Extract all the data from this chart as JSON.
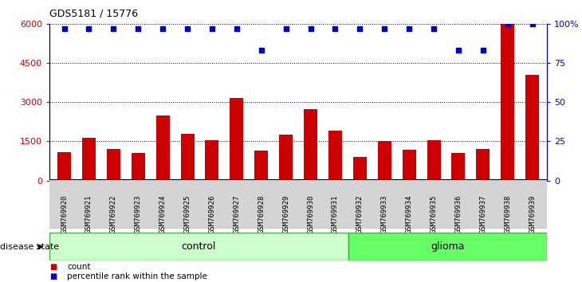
{
  "title": "GDS5181 / 15776",
  "categories": [
    "GSM769920",
    "GSM769921",
    "GSM769922",
    "GSM769923",
    "GSM769924",
    "GSM769925",
    "GSM769926",
    "GSM769927",
    "GSM769928",
    "GSM769929",
    "GSM769930",
    "GSM769931",
    "GSM769932",
    "GSM769933",
    "GSM769934",
    "GSM769935",
    "GSM769936",
    "GSM769937",
    "GSM769938",
    "GSM769939"
  ],
  "counts": [
    1100,
    1650,
    1200,
    1050,
    2500,
    1800,
    1550,
    3150,
    1150,
    1750,
    2750,
    1900,
    900,
    1500,
    1180,
    1550,
    1050,
    1200,
    6000,
    4050
  ],
  "percentile_ranks": [
    97,
    97,
    97,
    97,
    97,
    97,
    97,
    97,
    83,
    97,
    97,
    97,
    97,
    97,
    97,
    97,
    83,
    83,
    100,
    100
  ],
  "control_count": 12,
  "disease_state_label": "disease state",
  "control_label": "control",
  "glioma_label": "glioma",
  "bar_color": "#cc0000",
  "dot_color": "#0000cc",
  "control_color": "#ccffcc",
  "glioma_color": "#66ff66",
  "bg_color": "#d4d4d4",
  "ylim_left": [
    0,
    6000
  ],
  "ylim_right": [
    0,
    100
  ],
  "yticks_left": [
    0,
    1500,
    3000,
    4500,
    6000
  ],
  "yticks_right": [
    0,
    25,
    50,
    75,
    100
  ],
  "legend_count": "count",
  "legend_percentile": "percentile rank within the sample"
}
